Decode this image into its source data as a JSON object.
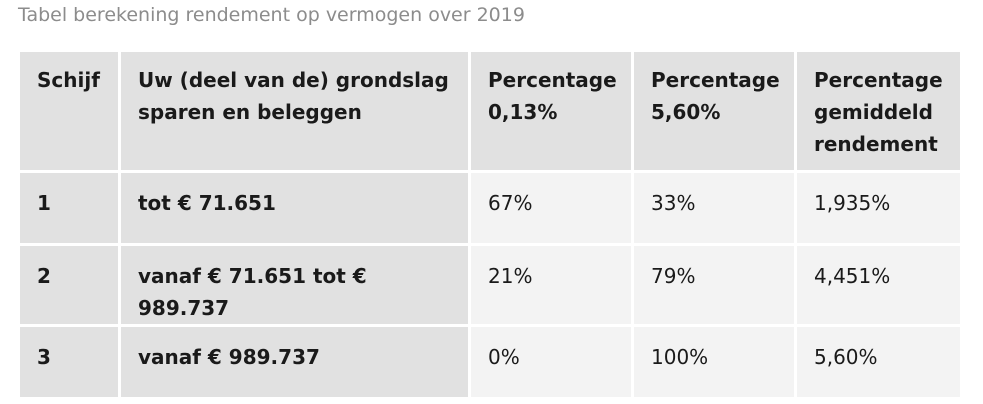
{
  "caption": "Tabel berekening rendement op vermogen over 2019",
  "table": {
    "headers": [
      "Schijf",
      "Uw (deel van de) grondslag sparen en beleggen",
      "Percentage 0,13%",
      "Percentage 5,60%",
      "Percentage gemiddeld rendement"
    ],
    "rows": [
      [
        "1",
        "tot € 71.651",
        "67%",
        "33%",
        "1,935%"
      ],
      [
        "2",
        "vanaf € 71.651 tot € 989.737",
        "21%",
        "79%",
        "4,451%"
      ],
      [
        "3",
        "vanaf € 989.737",
        "0%",
        "100%",
        "5,60%"
      ]
    ]
  },
  "colors": {
    "header_bg": "#e1e1e1",
    "cell_bg": "#f3f3f3",
    "caption_text": "#8c8c8c"
  }
}
